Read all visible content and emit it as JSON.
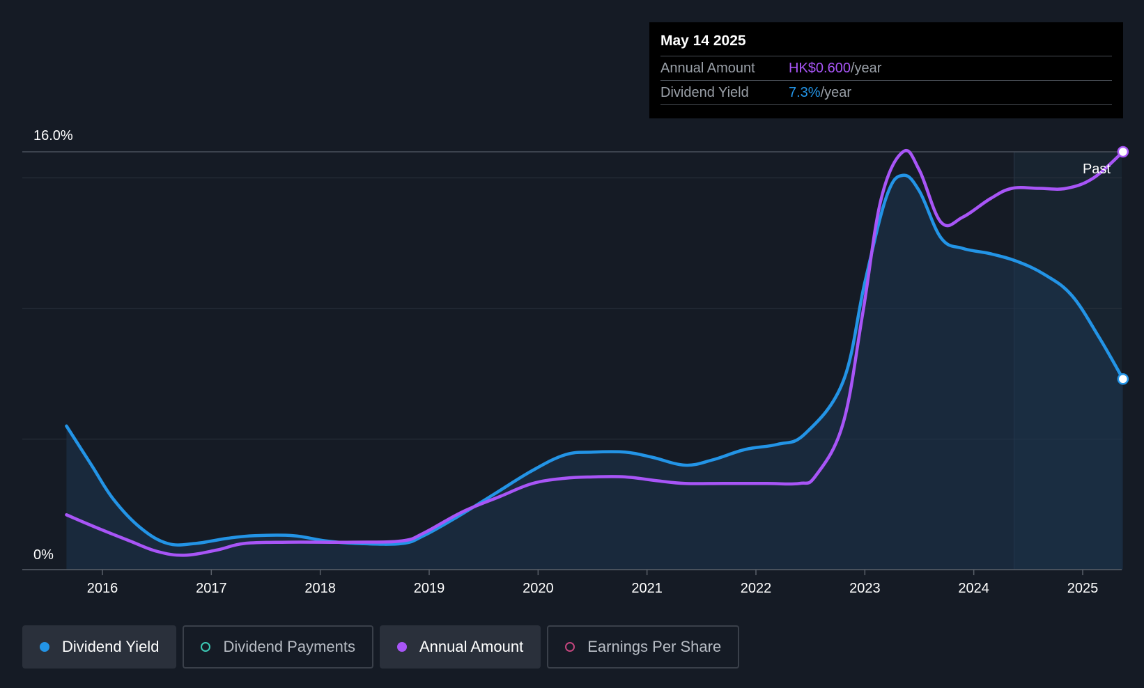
{
  "tooltip": {
    "date": "May 14 2025",
    "rows": [
      {
        "label": "Annual Amount",
        "value": "HK$0.600",
        "suffix": "/year",
        "color": "#a855f7"
      },
      {
        "label": "Dividend Yield",
        "value": "7.3%",
        "suffix": "/year",
        "color": "#2394e6"
      }
    ]
  },
  "legend": [
    {
      "label": "Dividend Yield",
      "color": "#2394e6",
      "style": "filled",
      "active": true
    },
    {
      "label": "Dividend Payments",
      "color": "#3cc9b5",
      "style": "hollow",
      "active": false
    },
    {
      "label": "Annual Amount",
      "color": "#a855f7",
      "style": "filled",
      "active": true
    },
    {
      "label": "Earnings Per Share",
      "color": "#c2457d",
      "style": "hollow",
      "active": false
    }
  ],
  "chart_data": {
    "type": "line",
    "y_axis": {
      "min": 0,
      "max": 16.0,
      "unit": "%",
      "labels": [
        "16.0%",
        "0%"
      ]
    },
    "x_range": [
      2015.35,
      2025.37
    ],
    "x_ticks": [
      2016,
      2017,
      2018,
      2019,
      2020,
      2021,
      2022,
      2023,
      2024,
      2025
    ],
    "past_label": "Past",
    "past_region_start": 2024.37,
    "series": [
      {
        "name": "Dividend Yield",
        "color": "#2394e6",
        "area": true,
        "points": [
          [
            2015.67,
            5.5
          ],
          [
            2015.9,
            4.0
          ],
          [
            2016.1,
            2.7
          ],
          [
            2016.35,
            1.6
          ],
          [
            2016.6,
            1.0
          ],
          [
            2016.85,
            1.0
          ],
          [
            2017.15,
            1.2
          ],
          [
            2017.4,
            1.3
          ],
          [
            2017.75,
            1.3
          ],
          [
            2018.05,
            1.1
          ],
          [
            2018.35,
            1.0
          ],
          [
            2018.75,
            1.0
          ],
          [
            2018.95,
            1.3
          ],
          [
            2019.25,
            2.0
          ],
          [
            2019.6,
            2.9
          ],
          [
            2019.95,
            3.8
          ],
          [
            2020.25,
            4.4
          ],
          [
            2020.5,
            4.5
          ],
          [
            2020.8,
            4.5
          ],
          [
            2021.05,
            4.3
          ],
          [
            2021.35,
            4.0
          ],
          [
            2021.6,
            4.2
          ],
          [
            2021.9,
            4.6
          ],
          [
            2022.2,
            4.8
          ],
          [
            2022.45,
            5.2
          ],
          [
            2022.8,
            7.2
          ],
          [
            2023.0,
            11.0
          ],
          [
            2023.2,
            14.3
          ],
          [
            2023.35,
            15.1
          ],
          [
            2023.5,
            14.5
          ],
          [
            2023.7,
            12.7
          ],
          [
            2023.9,
            12.3
          ],
          [
            2024.15,
            12.1
          ],
          [
            2024.4,
            11.8
          ],
          [
            2024.65,
            11.3
          ],
          [
            2024.9,
            10.5
          ],
          [
            2025.15,
            8.9
          ],
          [
            2025.37,
            7.3
          ]
        ]
      },
      {
        "name": "Annual Amount",
        "color": "#a855f7",
        "area": false,
        "points": [
          [
            2015.67,
            2.1
          ],
          [
            2015.95,
            1.6
          ],
          [
            2016.25,
            1.1
          ],
          [
            2016.5,
            0.7
          ],
          [
            2016.75,
            0.55
          ],
          [
            2017.05,
            0.75
          ],
          [
            2017.3,
            1.0
          ],
          [
            2017.7,
            1.05
          ],
          [
            2018.3,
            1.05
          ],
          [
            2018.75,
            1.1
          ],
          [
            2018.95,
            1.4
          ],
          [
            2019.3,
            2.2
          ],
          [
            2019.65,
            2.8
          ],
          [
            2019.95,
            3.3
          ],
          [
            2020.25,
            3.5
          ],
          [
            2020.5,
            3.55
          ],
          [
            2020.8,
            3.55
          ],
          [
            2021.1,
            3.4
          ],
          [
            2021.35,
            3.3
          ],
          [
            2021.7,
            3.3
          ],
          [
            2022.1,
            3.3
          ],
          [
            2022.4,
            3.3
          ],
          [
            2022.55,
            3.6
          ],
          [
            2022.8,
            5.6
          ],
          [
            2022.98,
            9.8
          ],
          [
            2023.15,
            14.2
          ],
          [
            2023.35,
            16.0
          ],
          [
            2023.5,
            15.3
          ],
          [
            2023.7,
            13.3
          ],
          [
            2023.9,
            13.5
          ],
          [
            2024.15,
            14.2
          ],
          [
            2024.35,
            14.6
          ],
          [
            2024.6,
            14.6
          ],
          [
            2024.85,
            14.6
          ],
          [
            2025.1,
            15.0
          ],
          [
            2025.37,
            16.0
          ]
        ]
      }
    ]
  }
}
